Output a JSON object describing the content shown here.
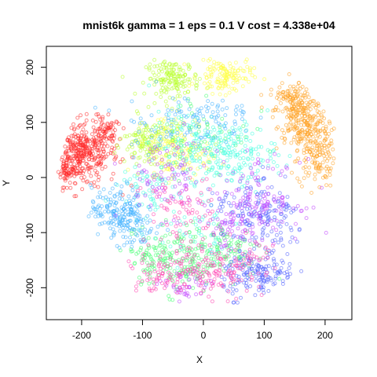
{
  "chart_data": {
    "type": "scatter",
    "title": "mnist6k gamma = 1 eps = 0.1 V cost = 4.338e+04",
    "xlabel": "X",
    "ylabel": "Y",
    "xlim": [
      -258,
      244
    ],
    "ylim": [
      -258,
      238
    ],
    "xticks": [
      -200,
      -100,
      0,
      100,
      200
    ],
    "yticks": [
      -200,
      -100,
      0,
      100,
      200
    ],
    "grid": false,
    "legend": "none",
    "series": [
      {
        "color": "#ff2a2a",
        "clusters": [
          [
            -200,
            45,
            30,
            30,
            340
          ],
          [
            -160,
            80,
            12,
            14,
            60
          ],
          [
            -225,
            15,
            14,
            14,
            60
          ]
        ]
      },
      {
        "color": "#ffa020",
        "clusters": [
          [
            160,
            120,
            22,
            30,
            140
          ],
          [
            185,
            50,
            16,
            35,
            150
          ],
          [
            165,
            85,
            20,
            25,
            90
          ],
          [
            140,
            145,
            15,
            12,
            50
          ]
        ]
      },
      {
        "color": "#b8ff2a",
        "clusters": [
          [
            -50,
            180,
            22,
            16,
            150
          ],
          [
            -80,
            60,
            25,
            25,
            140
          ],
          [
            -110,
            70,
            10,
            10,
            20
          ]
        ]
      },
      {
        "color": "#ffff40",
        "clusters": [
          [
            35,
            185,
            22,
            16,
            130
          ],
          [
            -60,
            60,
            25,
            30,
            90
          ],
          [
            -20,
            30,
            20,
            15,
            40
          ]
        ]
      },
      {
        "color": "#40ff70",
        "clusters": [
          [
            -40,
            -150,
            30,
            30,
            150
          ],
          [
            40,
            -130,
            30,
            25,
            100
          ],
          [
            0,
            80,
            40,
            40,
            60
          ],
          [
            -90,
            -140,
            20,
            20,
            50
          ]
        ]
      },
      {
        "color": "#40ffe0",
        "clusters": [
          [
            50,
            40,
            35,
            30,
            160
          ],
          [
            -20,
            60,
            35,
            30,
            100
          ],
          [
            -100,
            -20,
            30,
            25,
            60
          ],
          [
            -10,
            -100,
            40,
            30,
            50
          ]
        ]
      },
      {
        "color": "#40b0ff",
        "clusters": [
          [
            -140,
            -60,
            22,
            22,
            160
          ],
          [
            -110,
            -90,
            20,
            20,
            60
          ],
          [
            -60,
            100,
            40,
            30,
            70
          ],
          [
            20,
            110,
            30,
            20,
            50
          ]
        ]
      },
      {
        "color": "#5060ff",
        "clusters": [
          [
            90,
            -175,
            30,
            22,
            160
          ],
          [
            110,
            -80,
            30,
            30,
            110
          ],
          [
            60,
            -60,
            30,
            30,
            60
          ]
        ]
      },
      {
        "color": "#c040ff",
        "clusters": [
          [
            90,
            -40,
            35,
            35,
            140
          ],
          [
            -60,
            0,
            35,
            35,
            90
          ],
          [
            -30,
            -200,
            20,
            15,
            40
          ],
          [
            40,
            -90,
            20,
            20,
            40
          ]
        ]
      },
      {
        "color": "#ff40b0",
        "clusters": [
          [
            0,
            -170,
            40,
            30,
            160
          ],
          [
            -40,
            -60,
            30,
            30,
            70
          ],
          [
            80,
            -150,
            20,
            20,
            40
          ],
          [
            -80,
            -180,
            20,
            20,
            40
          ]
        ]
      }
    ]
  }
}
